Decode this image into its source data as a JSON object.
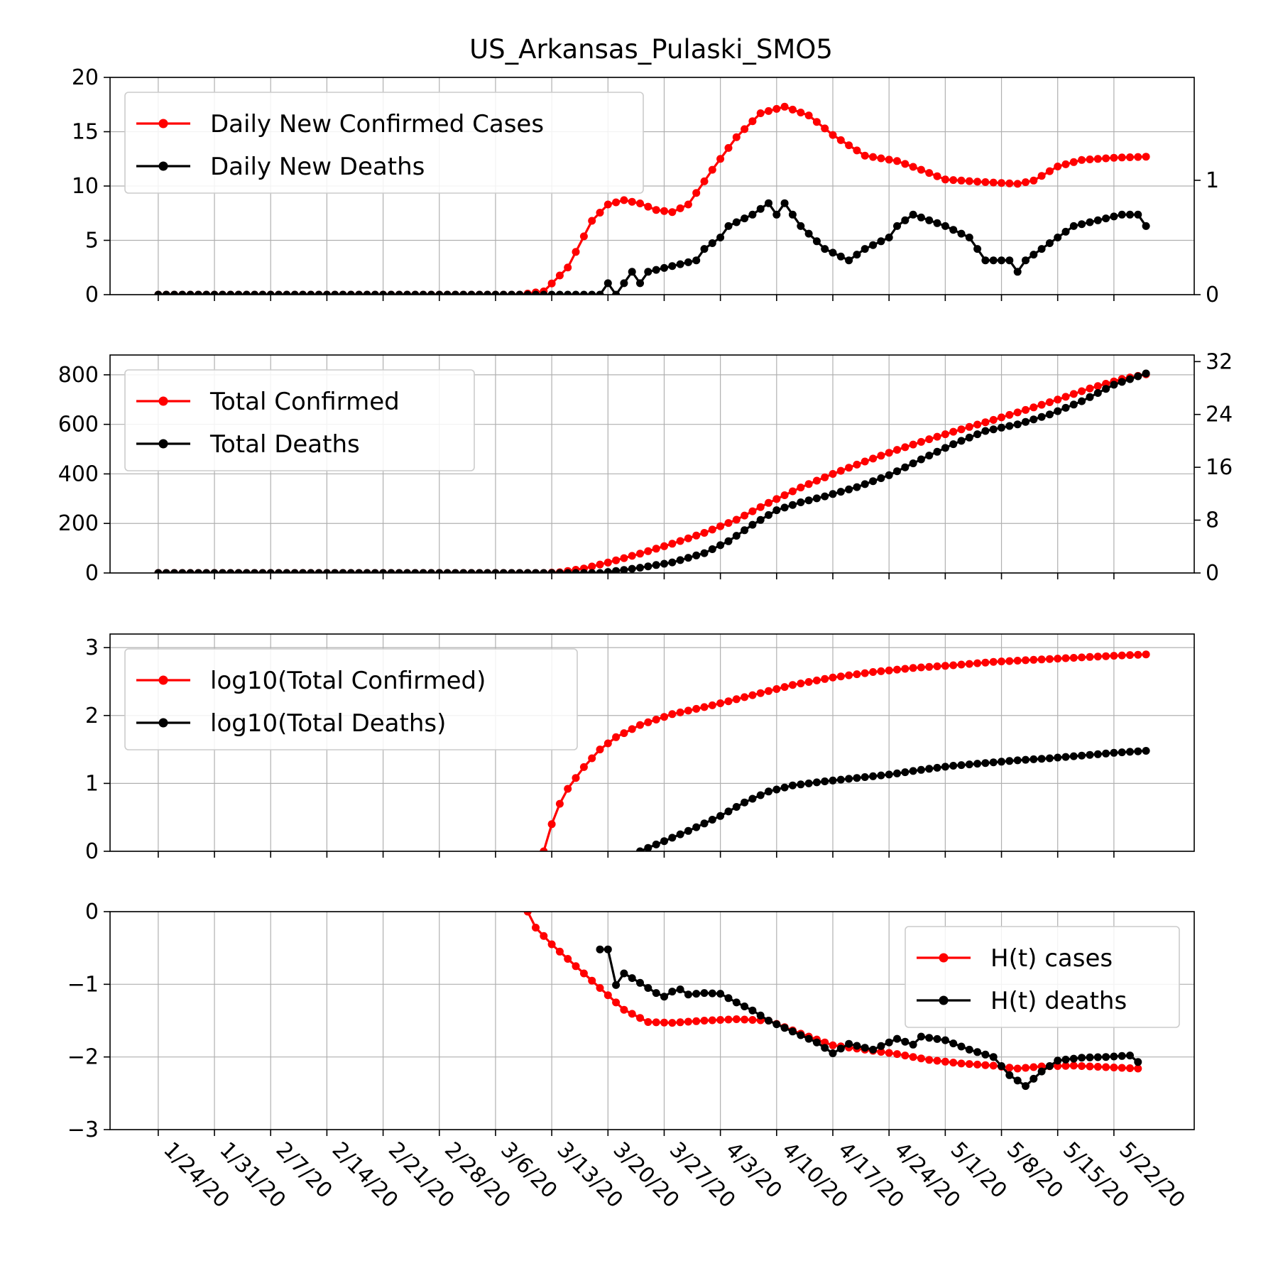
{
  "figure_title": "US_Arkansas_Pulaski_SMO5",
  "x_ticks": [
    "1/24/20",
    "1/31/20",
    "2/7/20",
    "2/14/20",
    "2/21/20",
    "2/28/20",
    "3/6/20",
    "3/13/20",
    "3/20/20",
    "3/27/20",
    "4/3/20",
    "4/10/20",
    "4/17/20",
    "4/24/20",
    "5/1/20",
    "5/8/20",
    "5/15/20",
    "5/22/20"
  ],
  "colors": {
    "red": "#ff0000",
    "black": "#000000",
    "grid": "#b0b0b0"
  },
  "chart_data": [
    {
      "type": "line",
      "title": "US_Arkansas_Pulaski_SMO5",
      "x": {
        "start": "1/24/20",
        "end": "5/26/20",
        "unit": "day"
      },
      "xlim": [
        "1/18/20",
        "6/1/20"
      ],
      "ylim": [
        0,
        20
      ],
      "y_ticks": [
        0,
        5,
        10,
        15,
        20
      ],
      "y2lim": [
        0,
        1.9
      ],
      "y2_ticks": [
        0,
        1
      ],
      "grid": true,
      "legend_position": "upper-left",
      "series": [
        {
          "name": "Daily New Confirmed Cases",
          "color": "#ff0000",
          "axis": "left",
          "start": "1/24/20",
          "end": "5/26/20",
          "knots": [
            [
              "3/9/20",
              0
            ],
            [
              "3/12/20",
              0.3
            ],
            [
              "3/15/20",
              2.5
            ],
            [
              "3/18/20",
              6.8
            ],
            [
              "3/20/20",
              8.3
            ],
            [
              "3/22/20",
              8.7
            ],
            [
              "3/24/20",
              8.4
            ],
            [
              "3/26/20",
              7.8
            ],
            [
              "3/28/20",
              7.6
            ],
            [
              "3/30/20",
              8.3
            ],
            [
              "4/2/20",
              11.5
            ],
            [
              "4/5/20",
              14.5
            ],
            [
              "4/8/20",
              16.7
            ],
            [
              "4/11/20",
              17.3
            ],
            [
              "4/14/20",
              16.5
            ],
            [
              "4/17/20",
              14.7
            ],
            [
              "4/21/20",
              12.8
            ],
            [
              "4/25/20",
              12.3
            ],
            [
              "4/28/20",
              11.5
            ],
            [
              "5/1/20",
              10.6
            ],
            [
              "5/5/20",
              10.4
            ],
            [
              "5/10/20",
              10.2
            ],
            [
              "5/12/20",
              10.5
            ],
            [
              "5/15/20",
              11.8
            ],
            [
              "5/18/20",
              12.4
            ],
            [
              "5/22/20",
              12.6
            ],
            [
              "5/26/20",
              12.7
            ]
          ]
        },
        {
          "name": "Daily New Deaths",
          "color": "#000000",
          "axis": "right",
          "start": "1/24/20",
          "end": "5/26/20",
          "knots": [
            [
              "3/19/20",
              0
            ],
            [
              "3/20/20",
              0.1
            ],
            [
              "3/21/20",
              0
            ],
            [
              "3/22/20",
              0.1
            ],
            [
              "3/23/20",
              0.2
            ],
            [
              "3/24/20",
              0.1
            ],
            [
              "3/25/20",
              0.2
            ],
            [
              "3/31/20",
              0.3
            ],
            [
              "4/1/20",
              0.4
            ],
            [
              "4/3/20",
              0.5
            ],
            [
              "4/4/20",
              0.6
            ],
            [
              "4/7/20",
              0.7
            ],
            [
              "4/9/20",
              0.8
            ],
            [
              "4/10/20",
              0.7
            ],
            [
              "4/11/20",
              0.8
            ],
            [
              "4/13/20",
              0.6
            ],
            [
              "4/16/20",
              0.4
            ],
            [
              "4/19/20",
              0.3
            ],
            [
              "4/21/20",
              0.4
            ],
            [
              "4/24/20",
              0.5
            ],
            [
              "4/25/20",
              0.6
            ],
            [
              "4/27/20",
              0.7
            ],
            [
              "5/1/20",
              0.6
            ],
            [
              "5/4/20",
              0.5
            ],
            [
              "5/6/20",
              0.3
            ],
            [
              "5/9/20",
              0.3
            ],
            [
              "5/10/20",
              0.2
            ],
            [
              "5/11/20",
              0.3
            ],
            [
              "5/13/20",
              0.4
            ],
            [
              "5/15/20",
              0.5
            ],
            [
              "5/17/20",
              0.6
            ],
            [
              "5/23/20",
              0.7
            ],
            [
              "5/25/20",
              0.7
            ],
            [
              "5/26/20",
              0.6
            ]
          ]
        }
      ]
    },
    {
      "type": "line",
      "xlim": [
        "1/18/20",
        "6/1/20"
      ],
      "ylim": [
        0,
        880
      ],
      "y_ticks": [
        0,
        200,
        400,
        600,
        800
      ],
      "y2lim": [
        0,
        33
      ],
      "y2_ticks": [
        0,
        8,
        16,
        24,
        32
      ],
      "grid": true,
      "legend_position": "upper-left",
      "series": [
        {
          "name": "Total Confirmed",
          "color": "#ff0000",
          "axis": "left",
          "start": "1/24/20",
          "end": "5/26/20",
          "knots": [
            [
              "3/12/20",
              0
            ],
            [
              "3/14/20",
              3
            ],
            [
              "3/17/20",
              18
            ],
            [
              "3/20/20",
              42
            ],
            [
              "3/24/20",
              78
            ],
            [
              "3/28/20",
              118
            ],
            [
              "4/1/20",
              162
            ],
            [
              "4/5/20",
              215
            ],
            [
              "4/9/20",
              283
            ],
            [
              "4/13/20",
              345
            ],
            [
              "4/17/20",
              400
            ],
            [
              "4/21/20",
              450
            ],
            [
              "4/25/20",
              497
            ],
            [
              "4/29/20",
              540
            ],
            [
              "5/3/20",
              580
            ],
            [
              "5/7/20",
              618
            ],
            [
              "5/11/20",
              658
            ],
            [
              "5/15/20",
              700
            ],
            [
              "5/19/20",
              745
            ],
            [
              "5/23/20",
              783
            ],
            [
              "5/26/20",
              802
            ]
          ]
        },
        {
          "name": "Total Deaths",
          "color": "#000000",
          "axis": "right",
          "start": "1/24/20",
          "end": "5/26/20",
          "knots": [
            [
              "3/19/20",
              0
            ],
            [
              "3/21/20",
              0.3
            ],
            [
              "3/24/20",
              0.8
            ],
            [
              "3/28/20",
              1.6
            ],
            [
              "4/1/20",
              3
            ],
            [
              "4/4/20",
              4.8
            ],
            [
              "4/7/20",
              7.3
            ],
            [
              "4/10/20",
              9.5
            ],
            [
              "4/13/20",
              10.7
            ],
            [
              "4/16/20",
              11.6
            ],
            [
              "4/20/20",
              13
            ],
            [
              "4/24/20",
              14.8
            ],
            [
              "4/28/20",
              17.2
            ],
            [
              "5/2/20",
              19.5
            ],
            [
              "5/6/20",
              21.5
            ],
            [
              "5/10/20",
              22.5
            ],
            [
              "5/14/20",
              24
            ],
            [
              "5/18/20",
              26
            ],
            [
              "5/22/20",
              28.5
            ],
            [
              "5/26/20",
              30.2
            ]
          ]
        }
      ]
    },
    {
      "type": "line",
      "xlim": [
        "1/18/20",
        "6/1/20"
      ],
      "ylim": [
        0,
        3.2
      ],
      "y_ticks": [
        0,
        1,
        2,
        3
      ],
      "grid": true,
      "legend_position": "upper-left",
      "series": [
        {
          "name": "log10(Total Confirmed)",
          "color": "#ff0000",
          "start": "3/12/20",
          "end": "5/26/20",
          "knots": [
            [
              "3/12/20",
              0
            ],
            [
              "3/13/20",
              0.4
            ],
            [
              "3/14/20",
              0.7
            ],
            [
              "3/15/20",
              0.92
            ],
            [
              "3/17/20",
              1.24
            ],
            [
              "3/19/20",
              1.5
            ],
            [
              "3/21/20",
              1.68
            ],
            [
              "3/24/20",
              1.86
            ],
            [
              "3/28/20",
              2.02
            ],
            [
              "4/2/20",
              2.15
            ],
            [
              "4/7/20",
              2.3
            ],
            [
              "4/12/20",
              2.45
            ],
            [
              "4/17/20",
              2.56
            ],
            [
              "4/22/20",
              2.64
            ],
            [
              "4/27/20",
              2.7
            ],
            [
              "5/2/20",
              2.74
            ],
            [
              "5/7/20",
              2.79
            ],
            [
              "5/12/20",
              2.82
            ],
            [
              "5/17/20",
              2.85
            ],
            [
              "5/22/20",
              2.88
            ],
            [
              "5/26/20",
              2.9
            ]
          ]
        },
        {
          "name": "log10(Total Deaths)",
          "color": "#000000",
          "start": "3/24/20",
          "end": "5/26/20",
          "knots": [
            [
              "3/24/20",
              0
            ],
            [
              "3/27/20",
              0.15
            ],
            [
              "3/30/20",
              0.3
            ],
            [
              "4/3/20",
              0.52
            ],
            [
              "4/6/20",
              0.72
            ],
            [
              "4/9/20",
              0.88
            ],
            [
              "4/12/20",
              0.97
            ],
            [
              "4/16/20",
              1.03
            ],
            [
              "4/20/20",
              1.08
            ],
            [
              "4/24/20",
              1.13
            ],
            [
              "4/28/20",
              1.2
            ],
            [
              "5/2/20",
              1.26
            ],
            [
              "5/6/20",
              1.3
            ],
            [
              "5/10/20",
              1.34
            ],
            [
              "5/14/20",
              1.37
            ],
            [
              "5/18/20",
              1.41
            ],
            [
              "5/22/20",
              1.45
            ],
            [
              "5/26/20",
              1.48
            ]
          ]
        }
      ]
    },
    {
      "type": "line",
      "xlim": [
        "1/18/20",
        "6/1/20"
      ],
      "ylim": [
        -3,
        0
      ],
      "y_ticks": [
        0,
        -1,
        -2,
        -3
      ],
      "grid": true,
      "legend_position": "upper-right",
      "series": [
        {
          "name": "H(t) cases",
          "color": "#ff0000",
          "start": "3/10/20",
          "end": "5/25/20",
          "knots": [
            [
              "3/10/20",
              0
            ],
            [
              "3/11/20",
              -0.22
            ],
            [
              "3/13/20",
              -0.45
            ],
            [
              "3/16/20",
              -0.75
            ],
            [
              "3/19/20",
              -1.05
            ],
            [
              "3/22/20",
              -1.35
            ],
            [
              "3/25/20",
              -1.52
            ],
            [
              "3/28/20",
              -1.53
            ],
            [
              "4/1/20",
              -1.5
            ],
            [
              "4/5/20",
              -1.48
            ],
            [
              "4/9/20",
              -1.5
            ],
            [
              "4/13/20",
              -1.68
            ],
            [
              "4/17/20",
              -1.84
            ],
            [
              "4/21/20",
              -1.9
            ],
            [
              "4/25/20",
              -1.96
            ],
            [
              "4/29/20",
              -2.04
            ],
            [
              "5/3/20",
              -2.09
            ],
            [
              "5/7/20",
              -2.12
            ],
            [
              "5/10/20",
              -2.16
            ],
            [
              "5/13/20",
              -2.13
            ],
            [
              "5/17/20",
              -2.12
            ],
            [
              "5/21/20",
              -2.14
            ],
            [
              "5/25/20",
              -2.16
            ]
          ]
        },
        {
          "name": "H(t) deaths",
          "color": "#000000",
          "start": "3/19/20",
          "end": "5/25/20",
          "knots": [
            [
              "3/19/20",
              -0.52
            ],
            [
              "3/20/20",
              -0.52
            ],
            [
              "3/21/20",
              -1.01
            ],
            [
              "3/22/20",
              -0.85
            ],
            [
              "3/24/20",
              -0.98
            ],
            [
              "3/26/20",
              -1.12
            ],
            [
              "3/27/20",
              -1.17
            ],
            [
              "3/28/20",
              -1.1
            ],
            [
              "3/29/20",
              -1.07
            ],
            [
              "3/30/20",
              -1.14
            ],
            [
              "4/1/20",
              -1.12
            ],
            [
              "4/3/20",
              -1.13
            ],
            [
              "4/5/20",
              -1.25
            ],
            [
              "4/7/20",
              -1.36
            ],
            [
              "4/9/20",
              -1.5
            ],
            [
              "4/12/20",
              -1.65
            ],
            [
              "4/15/20",
              -1.8
            ],
            [
              "4/17/20",
              -1.95
            ],
            [
              "4/19/20",
              -1.82
            ],
            [
              "4/22/20",
              -1.9
            ],
            [
              "4/25/20",
              -1.75
            ],
            [
              "4/27/20",
              -1.83
            ],
            [
              "4/28/20",
              -1.72
            ],
            [
              "5/1/20",
              -1.77
            ],
            [
              "5/4/20",
              -1.9
            ],
            [
              "5/7/20",
              -2.0
            ],
            [
              "5/9/20",
              -2.25
            ],
            [
              "5/11/20",
              -2.4
            ],
            [
              "5/13/20",
              -2.2
            ],
            [
              "5/15/20",
              -2.05
            ],
            [
              "5/18/20",
              -2.01
            ],
            [
              "5/21/20",
              -2.0
            ],
            [
              "5/24/20",
              -1.98
            ],
            [
              "5/25/20",
              -2.07
            ]
          ]
        }
      ]
    }
  ]
}
